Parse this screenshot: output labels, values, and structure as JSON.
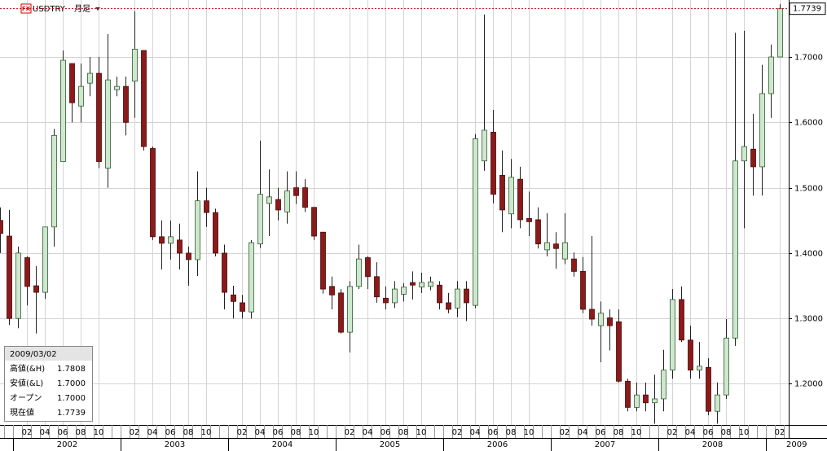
{
  "chart_data": {
    "type": "candlestick",
    "icon_label": "FX",
    "symbol": "USDTRY",
    "period": "月足",
    "categories": [
      null,
      null,
      null,
      "02",
      null,
      "04",
      null,
      "06",
      null,
      "08",
      null,
      "10",
      null,
      null,
      null,
      "02",
      null,
      "04",
      null,
      "06",
      null,
      "08",
      null,
      "10",
      null,
      null,
      null,
      "02",
      null,
      "04",
      null,
      "06",
      null,
      "08",
      null,
      "10",
      null,
      null,
      null,
      "02",
      null,
      "04",
      null,
      "06",
      null,
      "08",
      null,
      "10",
      null,
      null,
      null,
      "02",
      null,
      "04",
      null,
      "06",
      null,
      "08",
      null,
      "10",
      null,
      null,
      null,
      "02",
      null,
      "04",
      null,
      "06",
      null,
      "08",
      null,
      "10",
      null,
      null,
      null,
      "02",
      null,
      "04",
      null,
      "06",
      null,
      "08",
      null,
      "10",
      null,
      null,
      null,
      "02"
    ],
    "years": [
      "2002",
      "2003",
      "2004",
      "2005",
      "2006",
      "2007",
      "2008",
      "2009"
    ],
    "open": [
      1.45,
      1.426,
      1.3,
      1.393,
      1.35,
      1.34,
      1.44,
      1.54,
      1.69,
      1.625,
      1.66,
      1.675,
      1.53,
      1.65,
      1.655,
      1.663,
      1.71,
      1.56,
      1.425,
      1.415,
      1.42,
      1.4,
      1.39,
      1.48,
      1.462,
      1.4,
      1.336,
      1.324,
      1.31,
      1.414,
      1.476,
      1.482,
      1.463,
      1.5,
      1.5,
      1.47,
      1.432,
      1.349,
      1.339,
      1.279,
      1.349,
      1.393,
      1.364,
      1.331,
      1.324,
      1.337,
      1.355,
      1.348,
      1.349,
      1.351,
      1.324,
      1.316,
      1.345,
      1.32,
      1.541,
      1.585,
      1.519,
      1.46,
      1.513,
      1.453,
      1.451,
      1.405,
      1.414,
      1.391,
      1.391,
      1.372,
      1.314,
      1.289,
      1.301,
      1.295,
      1.204,
      1.164,
      1.183,
      1.171,
      1.177,
      1.221,
      1.329,
      1.267,
      1.221,
      1.225,
      1.158,
      1.183,
      1.27,
      1.541,
      1.559,
      1.532,
      1.644,
      1.7
    ],
    "high": [
      1.47,
      1.466,
      1.41,
      1.395,
      1.38,
      1.44,
      1.59,
      1.71,
      1.69,
      1.69,
      1.7,
      1.7,
      1.735,
      1.67,
      1.67,
      1.77,
      1.71,
      1.563,
      1.45,
      1.45,
      1.445,
      1.41,
      1.525,
      1.5,
      1.468,
      1.413,
      1.35,
      1.336,
      1.42,
      1.572,
      1.528,
      1.5,
      1.525,
      1.525,
      1.513,
      1.47,
      1.432,
      1.364,
      1.345,
      1.357,
      1.413,
      1.395,
      1.386,
      1.349,
      1.357,
      1.354,
      1.372,
      1.37,
      1.364,
      1.357,
      1.339,
      1.357,
      1.357,
      1.582,
      1.765,
      1.619,
      1.557,
      1.544,
      1.532,
      1.494,
      1.47,
      1.461,
      1.432,
      1.461,
      1.401,
      1.394,
      1.426,
      1.326,
      1.314,
      1.314,
      1.208,
      1.202,
      1.202,
      1.214,
      1.252,
      1.345,
      1.349,
      1.289,
      1.264,
      1.239,
      1.202,
      1.299,
      1.737,
      1.74,
      1.613,
      1.688,
      1.719,
      1.7808
    ],
    "low": [
      1.4,
      1.29,
      1.285,
      1.32,
      1.277,
      1.33,
      1.41,
      1.54,
      1.6,
      1.6,
      1.64,
      1.53,
      1.5,
      1.64,
      1.58,
      1.607,
      1.557,
      1.42,
      1.375,
      1.39,
      1.375,
      1.35,
      1.365,
      1.44,
      1.395,
      1.314,
      1.3,
      1.3,
      1.3,
      1.408,
      1.426,
      1.45,
      1.445,
      1.475,
      1.463,
      1.42,
      1.338,
      1.314,
      1.277,
      1.248,
      1.345,
      1.345,
      1.324,
      1.314,
      1.316,
      1.326,
      1.329,
      1.339,
      1.343,
      1.314,
      1.308,
      1.302,
      1.296,
      1.316,
      1.526,
      1.476,
      1.432,
      1.438,
      1.438,
      1.426,
      1.407,
      1.395,
      1.376,
      1.383,
      1.364,
      1.308,
      1.289,
      1.233,
      1.251,
      1.202,
      1.158,
      1.158,
      1.158,
      1.139,
      1.158,
      1.208,
      1.264,
      1.208,
      1.208,
      1.152,
      1.139,
      1.177,
      1.258,
      1.438,
      1.488,
      1.488,
      1.607,
      1.7
    ],
    "close": [
      1.43,
      1.3,
      1.4,
      1.349,
      1.34,
      1.44,
      1.58,
      1.695,
      1.63,
      1.655,
      1.675,
      1.54,
      1.665,
      1.655,
      1.6,
      1.712,
      1.563,
      1.425,
      1.415,
      1.425,
      1.4,
      1.39,
      1.48,
      1.462,
      1.4,
      1.34,
      1.326,
      1.311,
      1.416,
      1.49,
      1.486,
      1.466,
      1.495,
      1.488,
      1.47,
      1.426,
      1.345,
      1.336,
      1.279,
      1.349,
      1.391,
      1.364,
      1.333,
      1.324,
      1.345,
      1.348,
      1.351,
      1.355,
      1.356,
      1.324,
      1.314,
      1.345,
      1.324,
      1.575,
      1.588,
      1.49,
      1.466,
      1.516,
      1.451,
      1.448,
      1.414,
      1.416,
      1.407,
      1.416,
      1.372,
      1.314,
      1.299,
      1.308,
      1.289,
      1.204,
      1.164,
      1.183,
      1.171,
      1.177,
      1.221,
      1.329,
      1.267,
      1.221,
      1.227,
      1.158,
      1.183,
      1.27,
      1.541,
      1.563,
      1.532,
      1.644,
      1.7,
      1.7739
    ],
    "up_color": "#cfe6cf",
    "down_color": "#8b1a1a",
    "last_price": 1.7739,
    "ylim": [
      1.1371,
      1.7872
    ],
    "yticks": [
      {
        "value": 1.2,
        "label": "1.2000"
      },
      {
        "value": 1.3,
        "label": "1.3000"
      },
      {
        "value": 1.4,
        "label": "1.4000"
      },
      {
        "value": 1.5,
        "label": "1.5000"
      },
      {
        "value": 1.6,
        "label": "1.6000"
      },
      {
        "value": 1.7,
        "label": "1.7000"
      }
    ],
    "grid": true,
    "info": {
      "date": "2009/03/02",
      "rows": [
        [
          "高値(&H)",
          "1.7808"
        ],
        [
          "安値(&L)",
          "1.7000"
        ],
        [
          "オープン",
          "1.7000"
        ],
        [
          "現在値",
          "1.7739"
        ]
      ]
    }
  }
}
